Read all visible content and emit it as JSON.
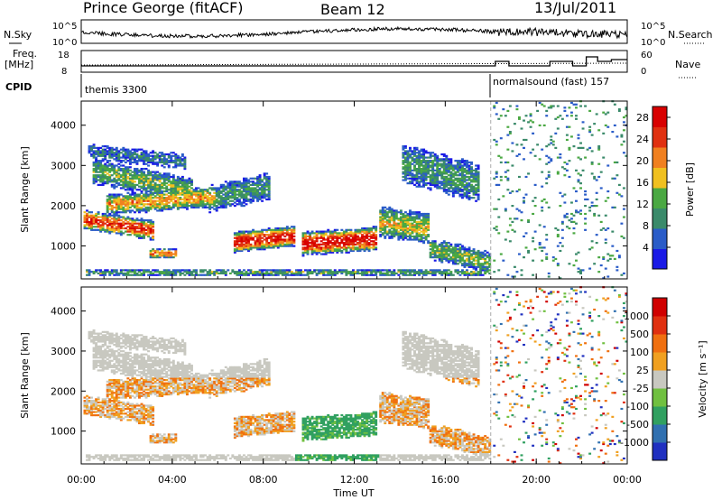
{
  "header": {
    "title": "Prince George (fitACF)",
    "beam": "Beam 12",
    "date": "13/Jul/2011"
  },
  "strips": {
    "sky_label": "N.Sky",
    "search_label": "N.Search",
    "sky_top": "10^5",
    "sky_bottom": "10^0",
    "freq_label_1": "Freq.",
    "freq_label_2": "[MHz]",
    "freq_top": "18",
    "freq_bottom": "8",
    "nave_label": "Nave",
    "nave_top": "60",
    "nave_bottom": "0",
    "cpid_label": "CPID",
    "cpid_1": "themis 3300",
    "cpid_2": "normalsound (fast) 157"
  },
  "chart_data": [
    {
      "type": "heatmap",
      "panel": "power",
      "xlabel": "Time UT",
      "ylabel": "Slant Range [km]",
      "x_ticks": [
        "00:00",
        "04:00",
        "08:00",
        "12:00",
        "16:00",
        "20:00",
        "00:00"
      ],
      "x_range_hours": [
        0,
        24
      ],
      "y_ticks": [
        1000,
        2000,
        3000,
        4000
      ],
      "ylim": [
        180,
        4600
      ],
      "colorbar": {
        "label": "Power [dB]",
        "ticks": [
          "4",
          "8",
          "12",
          "16",
          "20",
          "24",
          "28"
        ],
        "range": [
          0,
          30
        ],
        "colors": [
          "#1a1ae6",
          "#2a5cc8",
          "#3a8a6a",
          "#4aa842",
          "#f0c020",
          "#f08020",
          "#e03010",
          "#d80000"
        ]
      },
      "mode_change_hour": 18
    },
    {
      "type": "heatmap",
      "panel": "velocity",
      "xlabel": "Time UT",
      "ylabel": "Slant Range [km]",
      "x_ticks": [
        "00:00",
        "04:00",
        "08:00",
        "12:00",
        "16:00",
        "20:00",
        "00:00"
      ],
      "x_range_hours": [
        0,
        24
      ],
      "y_ticks": [
        1000,
        2000,
        3000,
        4000
      ],
      "ylim": [
        180,
        4600
      ],
      "colorbar": {
        "label": "Velocity [m s⁻¹]",
        "ticks": [
          "1000",
          "500",
          "100",
          "25",
          "-25",
          "-100",
          "-500",
          "-1000"
        ],
        "colors": [
          "#2030c0",
          "#3070b0",
          "#30a060",
          "#70c040",
          "#c8c8c0",
          "#f0a020",
          "#f07010",
          "#e03010",
          "#d00000"
        ]
      }
    }
  ]
}
